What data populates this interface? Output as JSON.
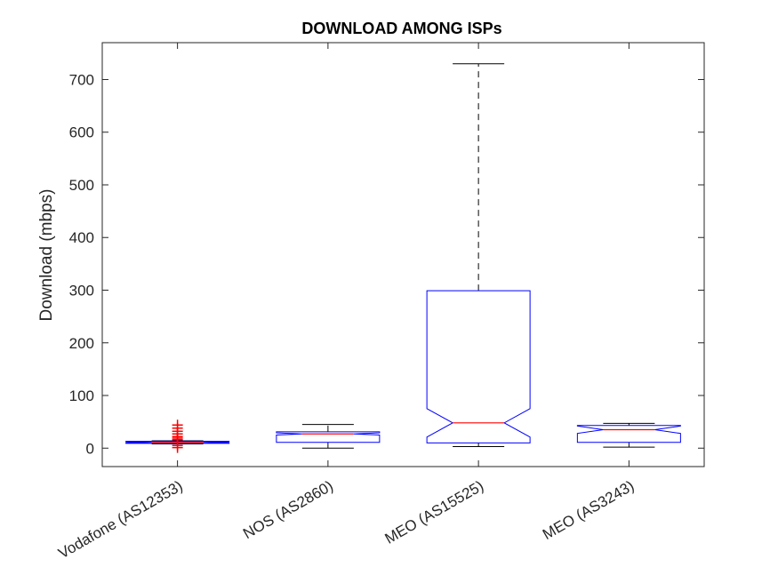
{
  "chart_data": {
    "type": "boxplot",
    "title": "DOWNLOAD AMONG ISPs",
    "xlabel": "",
    "ylabel": "Download (mbps)",
    "ylim": [
      -35,
      770
    ],
    "yticks": [
      0,
      100,
      200,
      300,
      400,
      500,
      600,
      700
    ],
    "notched": true,
    "grid": false,
    "colors": {
      "box": "#0000ff",
      "median": "#ff0000",
      "whisker": "#000000",
      "outlier": "#ff0000"
    },
    "categories": [
      "Vodafone (AS12353)",
      "NOS (AS2860)",
      "MEO (AS15525)",
      "MEO (AS3243)"
    ],
    "boxes": [
      {
        "category": "Vodafone (AS12353)",
        "whisker_low": 8,
        "q1": 9,
        "median": 11,
        "q3": 13,
        "whisker_high": 14,
        "notch_low": 10,
        "notch_high": 12,
        "outliers": [
          1,
          5,
          16,
          19,
          22,
          27,
          32,
          38,
          44
        ]
      },
      {
        "category": "NOS (AS2860)",
        "whisker_low": 0,
        "q1": 11,
        "median": 27,
        "q3": 31,
        "whisker_high": 45,
        "notch_low": 25,
        "notch_high": 29,
        "outliers": []
      },
      {
        "category": "MEO (AS15525)",
        "whisker_low": 3,
        "q1": 10,
        "median": 48,
        "q3": 299,
        "whisker_high": 730,
        "notch_low": 21,
        "notch_high": 75,
        "outliers": []
      },
      {
        "category": "MEO (AS3243)",
        "whisker_low": 2,
        "q1": 11,
        "median": 35,
        "q3": 43,
        "whisker_high": 47,
        "notch_low": 28,
        "notch_high": 42,
        "outliers": []
      }
    ]
  }
}
